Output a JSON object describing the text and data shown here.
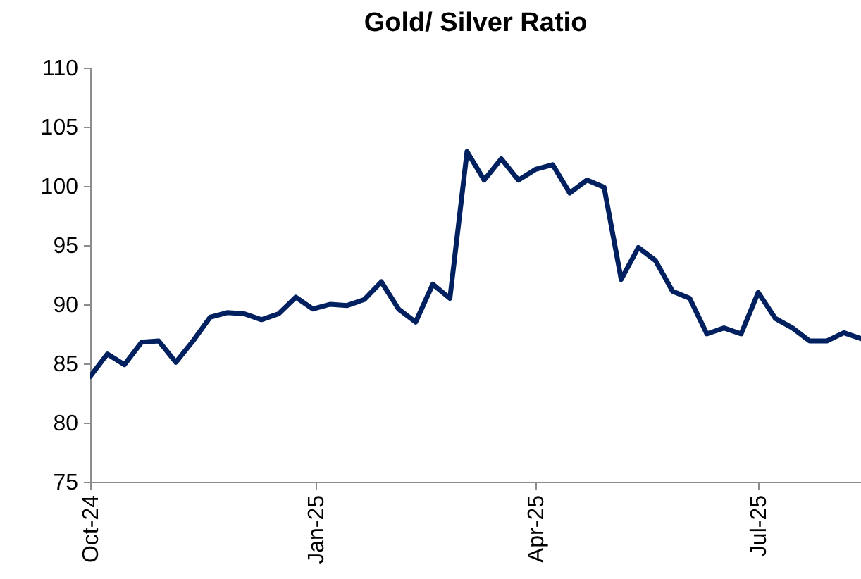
{
  "chart_data": {
    "type": "line",
    "title": "Gold/ Silver Ratio",
    "x": [
      "2024-10-01",
      "2024-10-08",
      "2024-10-15",
      "2024-10-22",
      "2024-10-29",
      "2024-11-05",
      "2024-11-12",
      "2024-11-19",
      "2024-11-26",
      "2024-12-03",
      "2024-12-10",
      "2024-12-17",
      "2024-12-24",
      "2024-12-31",
      "2025-01-07",
      "2025-01-14",
      "2025-01-21",
      "2025-01-28",
      "2025-02-04",
      "2025-02-11",
      "2025-02-18",
      "2025-02-25",
      "2025-03-04",
      "2025-03-11",
      "2025-03-18",
      "2025-03-25",
      "2025-04-01",
      "2025-04-08",
      "2025-04-15",
      "2025-04-22",
      "2025-04-29",
      "2025-05-06",
      "2025-05-13",
      "2025-05-20",
      "2025-05-27",
      "2025-06-03",
      "2025-06-10",
      "2025-06-17",
      "2025-06-24",
      "2025-07-01",
      "2025-07-08",
      "2025-07-15",
      "2025-07-22",
      "2025-07-29",
      "2025-08-05",
      "2025-08-12"
    ],
    "series": [
      {
        "color": "#002060",
        "values": [
          83.9,
          85.8,
          84.9,
          86.8,
          86.9,
          85.1,
          86.9,
          88.9,
          89.3,
          89.2,
          88.7,
          89.2,
          90.6,
          89.6,
          90.0,
          89.9,
          90.4,
          91.9,
          89.6,
          88.5,
          91.7,
          90.5,
          102.9,
          100.5,
          102.3,
          100.5,
          101.4,
          101.8,
          99.4,
          100.5,
          99.9,
          92.1,
          94.8,
          93.7,
          91.1,
          90.5,
          87.5,
          88.0,
          87.5,
          91.0,
          88.8,
          88.0,
          86.9,
          86.9,
          87.6,
          87.1
        ]
      }
    ],
    "xlim": [
      "2024-10-01",
      "2025-08-12"
    ],
    "xticks": [
      {
        "value": "2024-10-01",
        "label": "Oct-24"
      },
      {
        "value": "2025-01-01",
        "label": "Jan-25"
      },
      {
        "value": "2025-04-01",
        "label": "Apr-25"
      },
      {
        "value": "2025-07-01",
        "label": "Jul-25"
      }
    ],
    "ylim": [
      75,
      110
    ],
    "yticks": [
      75,
      80,
      85,
      90,
      95,
      100,
      105,
      110
    ],
    "grid": false,
    "legend": false,
    "line_style": "solid",
    "marker": "none"
  }
}
